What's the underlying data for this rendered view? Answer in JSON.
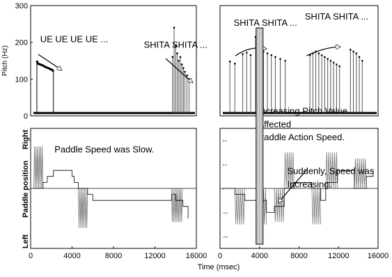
{
  "chart_data": [
    {
      "id": "pitch-left",
      "type": "line",
      "ylabel": "Pitch (Hz)",
      "ylim": [
        0,
        300
      ],
      "xlim": [
        0,
        16000
      ],
      "yticks": [
        "0",
        "100",
        "200",
        "300"
      ],
      "annotations": [
        {
          "text": "UE UE UE UE ...",
          "x": 4200,
          "y": 200
        },
        {
          "text": "SHITA SHITA ...",
          "x": 14000,
          "y": 185
        }
      ],
      "series": [
        {
          "x": [
            600,
            700,
            900,
            1100,
            1300,
            1500,
            1700,
            1900,
            2100,
            2200
          ],
          "values": [
            150,
            142,
            140,
            138,
            135,
            132,
            130,
            127,
            125,
            120
          ]
        }
      ],
      "spikes": [
        {
          "x": 13700,
          "y": 160
        },
        {
          "x": 13850,
          "y": 240
        },
        {
          "x": 14000,
          "y": 190
        },
        {
          "x": 14150,
          "y": 170
        },
        {
          "x": 14300,
          "y": 150
        },
        {
          "x": 14450,
          "y": 160
        },
        {
          "x": 14600,
          "y": 140
        },
        {
          "x": 14750,
          "y": 130
        },
        {
          "x": 14900,
          "y": 120
        },
        {
          "x": 15100,
          "y": 110
        },
        {
          "x": 15300,
          "y": 100
        }
      ]
    },
    {
      "id": "pitch-right",
      "type": "line",
      "ylim": [
        0,
        300
      ],
      "xlim": [
        0,
        16000
      ],
      "annotations": [
        {
          "text": "SHITA SHITA ...",
          "x": 4600,
          "y": 245
        },
        {
          "text": "SHITA SHITA ...",
          "x": 11800,
          "y": 262
        }
      ],
      "spikes": [
        {
          "x": 1000,
          "y": 148
        },
        {
          "x": 1500,
          "y": 142
        },
        {
          "x": 2300,
          "y": 168
        },
        {
          "x": 2700,
          "y": 172
        },
        {
          "x": 3100,
          "y": 165
        },
        {
          "x": 3600,
          "y": 215
        },
        {
          "x": 4000,
          "y": 190
        },
        {
          "x": 4400,
          "y": 175
        },
        {
          "x": 4800,
          "y": 170
        },
        {
          "x": 5200,
          "y": 165
        },
        {
          "x": 5600,
          "y": 160
        },
        {
          "x": 6100,
          "y": 155
        },
        {
          "x": 6600,
          "y": 150
        },
        {
          "x": 9100,
          "y": 165
        },
        {
          "x": 9400,
          "y": 170
        },
        {
          "x": 9700,
          "y": 175
        },
        {
          "x": 10000,
          "y": 170
        },
        {
          "x": 10300,
          "y": 165
        },
        {
          "x": 10600,
          "y": 160
        },
        {
          "x": 10900,
          "y": 155
        },
        {
          "x": 11200,
          "y": 150
        },
        {
          "x": 11500,
          "y": 145
        },
        {
          "x": 11800,
          "y": 140
        },
        {
          "x": 12100,
          "y": 135
        },
        {
          "x": 13200,
          "y": 180
        },
        {
          "x": 13500,
          "y": 175
        },
        {
          "x": 13800,
          "y": 170
        },
        {
          "x": 14100,
          "y": 160
        },
        {
          "x": 14400,
          "y": 150
        }
      ]
    },
    {
      "id": "paddle-left",
      "type": "line",
      "ylabel": "Paddle position",
      "ylabel_top": "Right",
      "ylabel_bottom": "Left",
      "xlim": [
        0,
        16000
      ],
      "ylim": [
        -0.5,
        0.5
      ],
      "xticks": [
        "0",
        "4000",
        "8000",
        "12000",
        "16000"
      ],
      "annotations": [
        {
          "text": "Paddle Speed was Slow.",
          "x": 2300,
          "y": 0.3
        }
      ],
      "oscillations": [
        {
          "x0": 300,
          "x1": 1200,
          "amp": 0.35,
          "period": 150
        },
        {
          "x0": 4600,
          "x1": 5500,
          "amp": -0.33,
          "period": 150
        },
        {
          "x0": 13600,
          "x1": 14700,
          "amp": -0.28,
          "period": 150
        }
      ],
      "steps": {
        "x": [
          300,
          1200,
          1600,
          2200,
          3700,
          4000,
          4200,
          4600,
          5500,
          6000,
          13600,
          14000,
          14700,
          15200
        ],
        "values": [
          0.0,
          0.05,
          0.1,
          0.15,
          0.15,
          0.1,
          0.05,
          0.0,
          -0.05,
          -0.1,
          -0.05,
          -0.1,
          -0.15,
          -0.25
        ]
      }
    },
    {
      "id": "paddle-right",
      "type": "line",
      "xlim": [
        0,
        16000
      ],
      "ylim": [
        -0.5,
        0.5
      ],
      "xticks": [
        "0",
        "4000",
        "8000",
        "12000",
        "16000"
      ],
      "yticks": [
        "0.4",
        "0.2",
        "0",
        "-0.2",
        "-0.4"
      ],
      "annotations": [
        {
          "text": "Increasing Pitch Value",
          "x": 3850,
          "y": 0.62
        },
        {
          "text": "Affected",
          "x": 3850,
          "y": 0.51
        },
        {
          "text": "Paddle Action Speed.",
          "x": 3850,
          "y": 0.4
        },
        {
          "text": "Suddenly, Speed was",
          "x": 6800,
          "y": 0.12
        },
        {
          "text": "Increasing.",
          "x": 6800,
          "y": 0.01
        }
      ],
      "oscillations": [
        {
          "x0": 1500,
          "x1": 2500,
          "amp": -0.3,
          "period": 200
        },
        {
          "x0": 3800,
          "x1": 4700,
          "amp": -0.3,
          "period": 200
        },
        {
          "x0": 5500,
          "x1": 6500,
          "amp": -0.28,
          "period": 200
        },
        {
          "x0": 6500,
          "x1": 7500,
          "amp": 0.3,
          "period": 200
        },
        {
          "x0": 9300,
          "x1": 10200,
          "amp": -0.3,
          "period": 200
        },
        {
          "x0": 10700,
          "x1": 11900,
          "amp": 0.3,
          "period": 200
        },
        {
          "x0": 13600,
          "x1": 14800,
          "amp": 0.25,
          "period": 200
        }
      ],
      "steps": {
        "x": [
          500,
          1500,
          2500,
          3800,
          4700,
          5500,
          6500,
          7500,
          9300,
          10200,
          10700,
          11900,
          13600,
          14800,
          15500
        ],
        "values": [
          0.0,
          -0.05,
          -0.1,
          -0.1,
          -0.2,
          -0.15,
          0.0,
          0.05,
          0.0,
          -0.1,
          0.05,
          0.15,
          0.0,
          0.1,
          0.15
        ]
      },
      "highlight_x": 4000
    }
  ],
  "shared": {
    "xlabel": "Time (msec)"
  }
}
